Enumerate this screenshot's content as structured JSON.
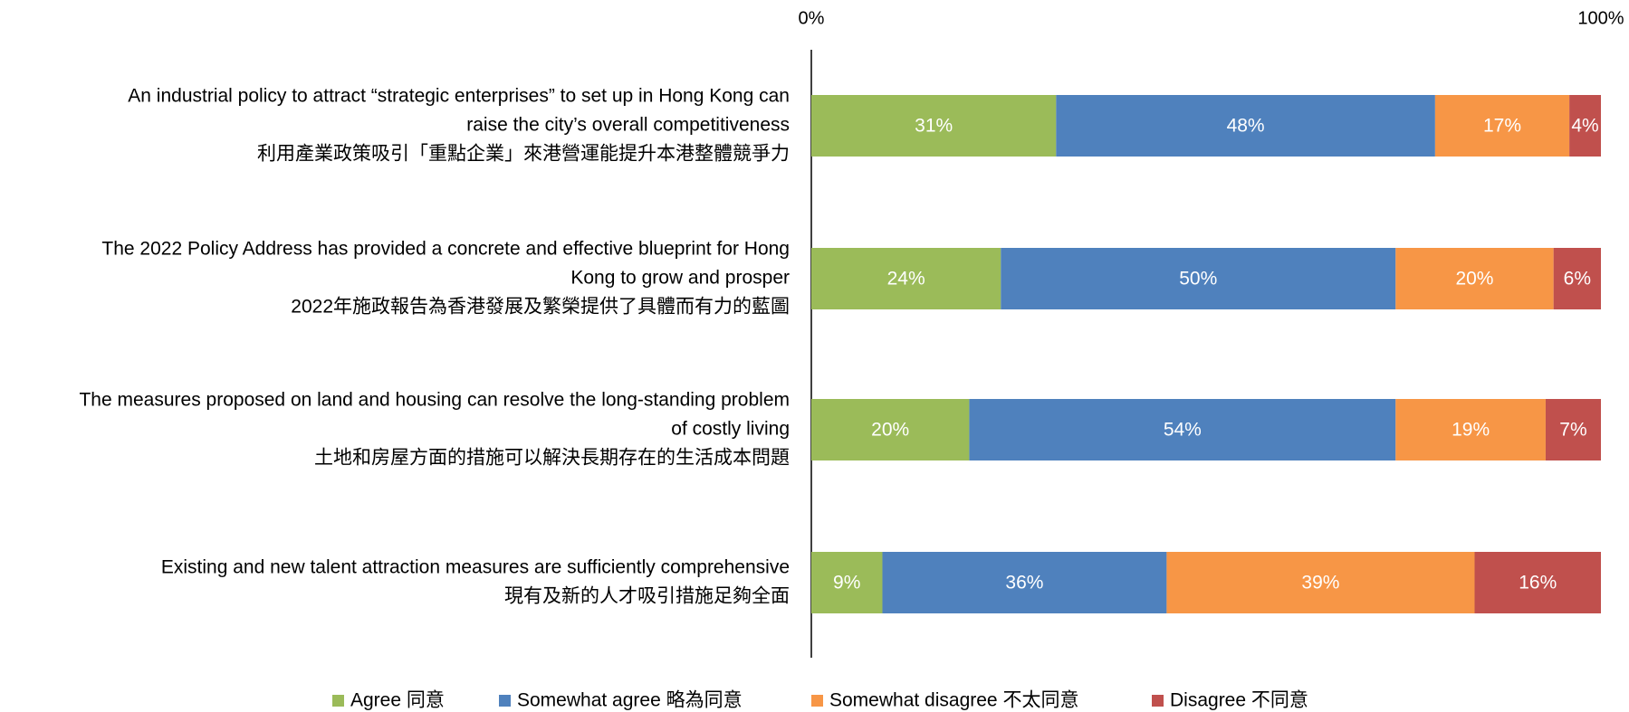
{
  "chart_data": {
    "type": "stacked_barh",
    "categories": [
      [
        "An industrial policy to attract “strategic enterprises” to set up in Hong Kong can",
        "raise the city’s overall competitiveness",
        "利用產業政策吸引「重點企業」來港營運能提升本港整體競爭力"
      ],
      [
        "The 2022 Policy Address has provided a concrete and effective blueprint for Hong",
        "Kong to grow and prosper",
        "2022年施政報告為香港發展及繁榮提供了具體而有力的藍圖"
      ],
      [
        "The measures proposed on land and housing can resolve the long-standing problem",
        "of costly living",
        "土地和房屋方面的措施可以解決長期存在的生活成本問題"
      ],
      [
        "Existing and new talent attraction measures are sufficiently comprehensive",
        "現有及新的人才吸引措施足夠全面"
      ]
    ],
    "series": [
      {
        "name": "Agree 同意",
        "color": "#9bbb59",
        "values": [
          31,
          24,
          20,
          9
        ],
        "value_labels": [
          "31%",
          "24%",
          "20%",
          "9%"
        ]
      },
      {
        "name": "Somewhat agree 略為同意",
        "color": "#4f81bd",
        "values": [
          48,
          50,
          54,
          36
        ],
        "value_labels": [
          "48%",
          "50%",
          "54%",
          "36%"
        ]
      },
      {
        "name": "Somewhat disagree 不太同意",
        "color": "#f79646",
        "values": [
          17,
          20,
          19,
          39
        ],
        "value_labels": [
          "17%",
          "20%",
          "19%",
          "39%"
        ]
      },
      {
        "name": "Disagree 不同意",
        "color": "#c0504d",
        "values": [
          4,
          6,
          7,
          16
        ],
        "value_labels": [
          "4%",
          "6%",
          "7%",
          "16%"
        ]
      }
    ],
    "xlim": [
      0,
      100
    ],
    "xticks": [
      {
        "value": 0,
        "label": "0%"
      },
      {
        "value": 100,
        "label": "100%"
      }
    ],
    "legend": "bottom"
  }
}
